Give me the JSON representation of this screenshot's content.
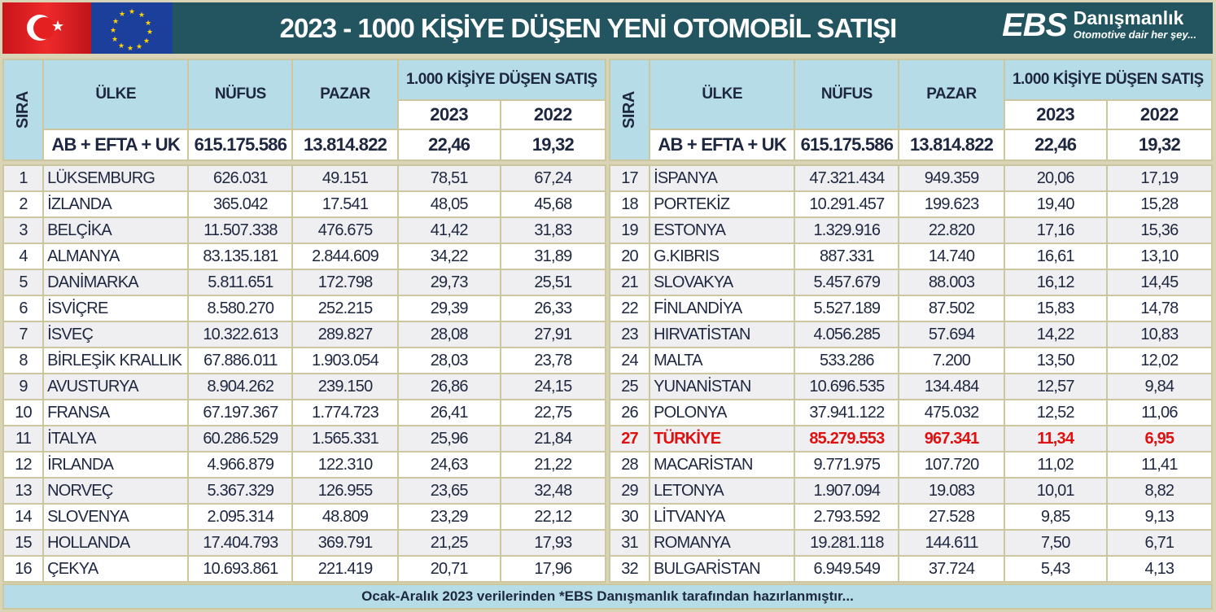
{
  "title": "2023 - 1000 KİŞİYE DÜŞEN YENİ OTOMOBİL SATIŞI",
  "logo": {
    "brand": "EBS",
    "name": "Danışmanlık",
    "slogan": "Otomotive dair her şey..."
  },
  "headers": {
    "sira": "SIRA",
    "ulke": "ÜLKE",
    "nufus": "NÜFUS",
    "pazar": "PAZAR",
    "per1000": "1.000 KİŞİYE DÜŞEN SATIŞ",
    "y2023": "2023",
    "y2022": "2022"
  },
  "totals": {
    "label": "AB + EFTA + UK",
    "nufus": "615.175.586",
    "pazar": "13.814.822",
    "v2023": "22,46",
    "v2022": "19,32"
  },
  "highlight_color": "#e01010",
  "left_rows": [
    [
      "1",
      "LÜKSEMBURG",
      "626.031",
      "49.151",
      "78,51",
      "67,24"
    ],
    [
      "2",
      "İZLANDA",
      "365.042",
      "17.541",
      "48,05",
      "45,68"
    ],
    [
      "3",
      "BELÇİKA",
      "11.507.338",
      "476.675",
      "41,42",
      "31,83"
    ],
    [
      "4",
      "ALMANYA",
      "83.135.181",
      "2.844.609",
      "34,22",
      "31,89"
    ],
    [
      "5",
      "DANİMARKA",
      "5.811.651",
      "172.798",
      "29,73",
      "25,51"
    ],
    [
      "6",
      "İSVİÇRE",
      "8.580.270",
      "252.215",
      "29,39",
      "26,33"
    ],
    [
      "7",
      "İSVEÇ",
      "10.322.613",
      "289.827",
      "28,08",
      "27,91"
    ],
    [
      "8",
      "BİRLEŞİK KRALLIK",
      "67.886.011",
      "1.903.054",
      "28,03",
      "23,78"
    ],
    [
      "9",
      "AVUSTURYA",
      "8.904.262",
      "239.150",
      "26,86",
      "24,15"
    ],
    [
      "10",
      "FRANSA",
      "67.197.367",
      "1.774.723",
      "26,41",
      "22,75"
    ],
    [
      "11",
      "İTALYA",
      "60.286.529",
      "1.565.331",
      "25,96",
      "21,84"
    ],
    [
      "12",
      "İRLANDA",
      "4.966.879",
      "122.310",
      "24,63",
      "21,22"
    ],
    [
      "13",
      "NORVEÇ",
      "5.367.329",
      "126.955",
      "23,65",
      "32,48"
    ],
    [
      "14",
      "SLOVENYA",
      "2.095.314",
      "48.809",
      "23,29",
      "22,12"
    ],
    [
      "15",
      "HOLLANDA",
      "17.404.793",
      "369.791",
      "21,25",
      "17,93"
    ],
    [
      "16",
      "ÇEKYA",
      "10.693.861",
      "221.419",
      "20,71",
      "17,96"
    ]
  ],
  "right_rows": [
    [
      "17",
      "İSPANYA",
      "47.321.434",
      "949.359",
      "20,06",
      "17,19"
    ],
    [
      "18",
      "PORTEKİZ",
      "10.291.457",
      "199.623",
      "19,40",
      "15,28"
    ],
    [
      "19",
      "ESTONYA",
      "1.329.916",
      "22.820",
      "17,16",
      "15,36"
    ],
    [
      "20",
      "G.KIBRIS",
      "887.331",
      "14.740",
      "16,61",
      "13,10"
    ],
    [
      "21",
      "SLOVAKYA",
      "5.457.679",
      "88.003",
      "16,12",
      "14,45"
    ],
    [
      "22",
      "FİNLANDİYA",
      "5.527.189",
      "87.502",
      "15,83",
      "14,78"
    ],
    [
      "23",
      "HIRVATİSTAN",
      "4.056.285",
      "57.694",
      "14,22",
      "10,83"
    ],
    [
      "24",
      "MALTA",
      "533.286",
      "7.200",
      "13,50",
      "12,02"
    ],
    [
      "25",
      "YUNANİSTAN",
      "10.696.535",
      "134.484",
      "12,57",
      "9,84"
    ],
    [
      "26",
      "POLONYA",
      "37.941.122",
      "475.032",
      "12,52",
      "11,06"
    ],
    [
      "27",
      "TÜRKİYE",
      "85.279.553",
      "967.341",
      "11,34",
      "6,95"
    ],
    [
      "28",
      "MACARİSTAN",
      "9.771.975",
      "107.720",
      "11,02",
      "11,41"
    ],
    [
      "29",
      "LETONYA",
      "1.907.094",
      "19.083",
      "10,01",
      "8,82"
    ],
    [
      "30",
      "LİTVANYA",
      "2.793.592",
      "27.528",
      "9,85",
      "9,13"
    ],
    [
      "31",
      "ROMANYA",
      "19.281.118",
      "144.611",
      "7,50",
      "6,71"
    ],
    [
      "32",
      "BULGARİSTAN",
      "6.949.549",
      "37.724",
      "5,43",
      "4,13"
    ]
  ],
  "highlight_row": "27",
  "footer": "Ocak-Aralık 2023 verilerinden *EBS Danışmanlık tarafından hazırlanmıştır..."
}
